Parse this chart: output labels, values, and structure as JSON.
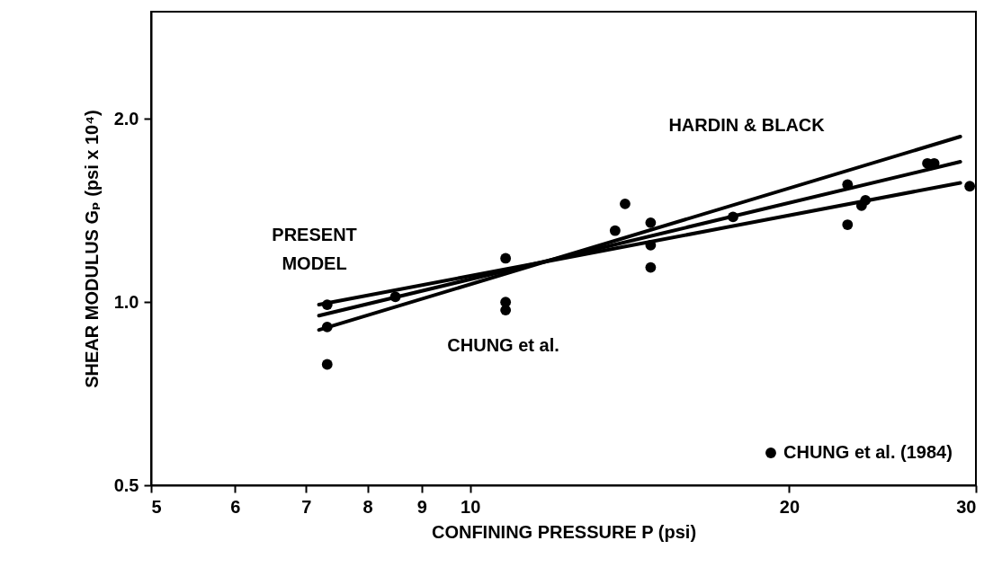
{
  "chart_data": {
    "type": "scatter",
    "xlabel": "CONFINING PRESSURE  P (psi)",
    "ylabel": "SHEAR MODULUS Gₚ (psi x 10⁴)",
    "log": "xy",
    "xlim": [
      5,
      30
    ],
    "ylim": [
      0.5,
      3
    ],
    "xticks": [
      5,
      6,
      7,
      8,
      9,
      10,
      20,
      30
    ],
    "yticks": [
      0.5,
      {
        "value": 1,
        "label": "1.0"
      },
      {
        "value": 2,
        "label": "2.0"
      }
    ],
    "legend": "bottom right",
    "grid": false,
    "series": [
      {
        "name": "CHUNG et al. (1984)",
        "type": "scatter",
        "marker": "circle",
        "color": "#000000",
        "x": [
          7.33,
          7.33,
          7.33,
          8.5,
          10.8,
          10.8,
          10.8,
          13.7,
          14.0,
          14.8,
          14.8,
          14.8,
          17.7,
          22.7,
          22.7,
          23.4,
          23.6,
          27.0,
          27.4,
          29.6
        ],
        "values": [
          0.99,
          0.91,
          0.79,
          1.02,
          1.18,
          1.0,
          0.97,
          1.31,
          1.45,
          1.35,
          1.24,
          1.14,
          1.38,
          1.56,
          1.34,
          1.44,
          1.47,
          1.69,
          1.69,
          1.55
        ]
      },
      {
        "type": "line",
        "color": "#000000",
        "line_style": "solid",
        "x": [
          7.2,
          29.0
        ],
        "values": [
          0.9,
          1.87
        ]
      },
      {
        "type": "line",
        "color": "#000000",
        "line_style": "solid",
        "x": [
          7.2,
          29.0
        ],
        "values": [
          0.95,
          1.7
        ]
      },
      {
        "type": "line",
        "color": "#000000",
        "line_style": "solid",
        "x": [
          7.2,
          29.0
        ],
        "values": [
          0.99,
          1.57
        ]
      }
    ],
    "annotations": [
      "HARDIN & BLACK",
      "PRESENT\nMODEL",
      "CHUNG et al."
    ]
  }
}
